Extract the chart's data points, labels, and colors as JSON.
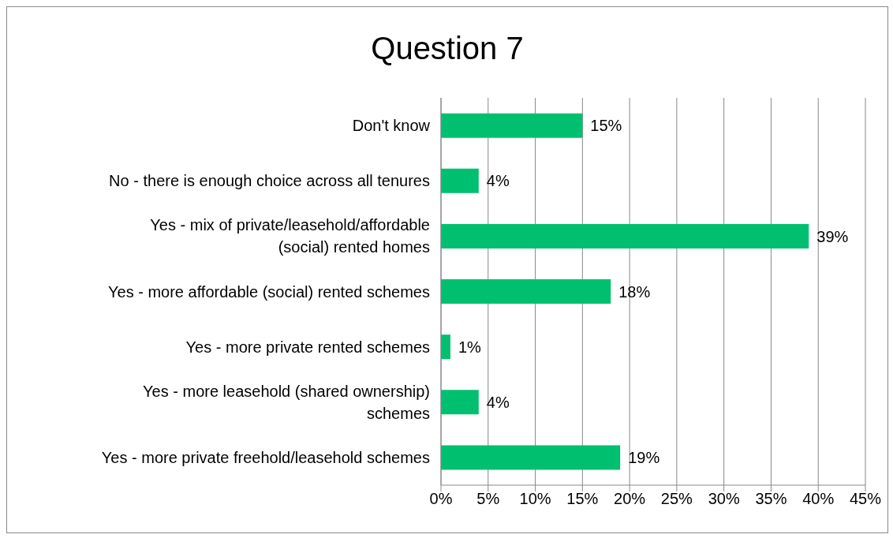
{
  "chart_data": {
    "type": "bar",
    "orientation": "horizontal",
    "title": "Question 7",
    "categories": [
      "Don't know",
      "No - there is enough choice across all tenures",
      "Yes - mix of private/leasehold/affordable (social) rented homes",
      "Yes - more affordable (social) rented schemes",
      "Yes - more private rented schemes",
      "Yes - more leasehold (shared ownership) schemes",
      "Yes - more private freehold/leasehold schemes"
    ],
    "values": [
      15,
      4,
      39,
      18,
      1,
      4,
      19
    ],
    "value_labels": [
      "15%",
      "4%",
      "39%",
      "18%",
      "1%",
      "4%",
      "19%"
    ],
    "color": "#00c070",
    "xlim": [
      0,
      45
    ],
    "xticks": [
      {
        "value": 0,
        "label": "0%"
      },
      {
        "value": 5,
        "label": "5%"
      },
      {
        "value": 10,
        "label": "10%"
      },
      {
        "value": 15,
        "label": "15%"
      },
      {
        "value": 20,
        "label": "20%"
      },
      {
        "value": 25,
        "label": "25%"
      },
      {
        "value": 30,
        "label": "30%"
      },
      {
        "value": 35,
        "label": "35%"
      },
      {
        "value": 40,
        "label": "40%"
      },
      {
        "value": 45,
        "label": "45%"
      }
    ],
    "grid": "x"
  }
}
